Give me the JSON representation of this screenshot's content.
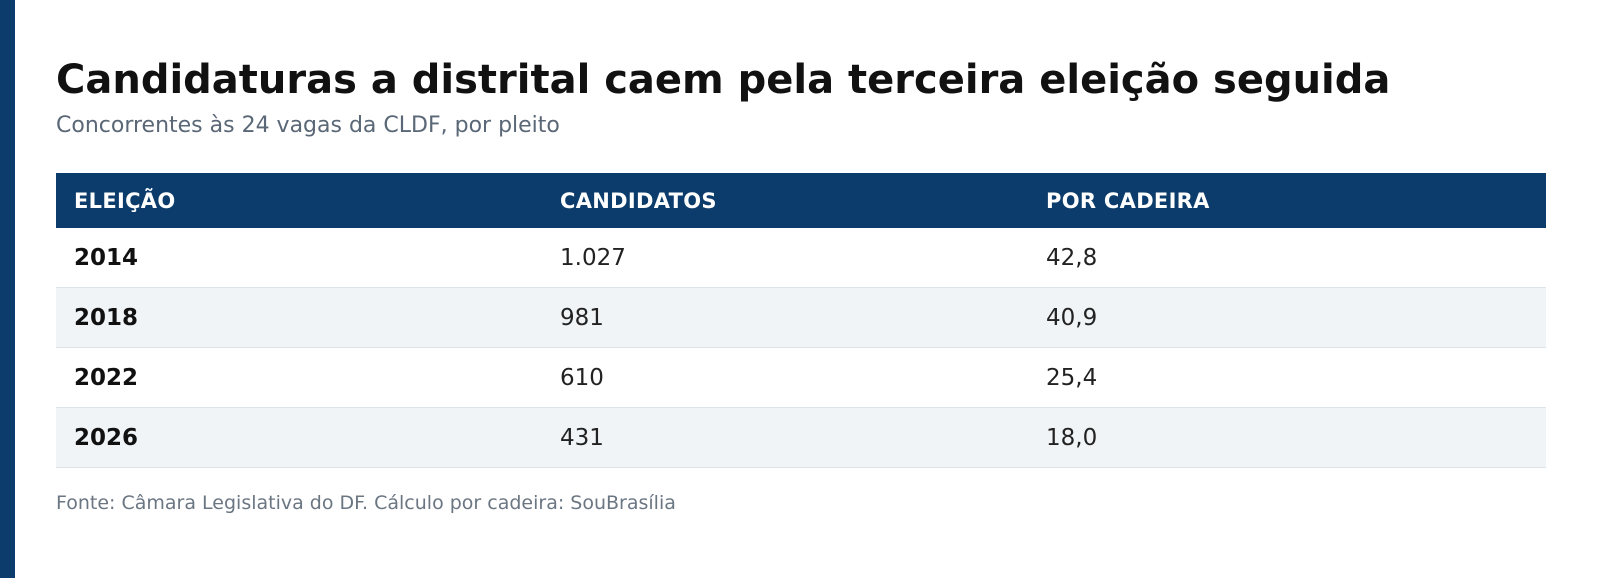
{
  "title": "Candidaturas a distrital caem pela terceira eleição seguida",
  "subtitle": "Concorrentes às 24 vagas da CLDF, por pleito",
  "source": "Fonte: Câmara Legislativa do DF. Cálculo por cadeira: SouBrasília",
  "colors": {
    "accent": "#0b3c6b",
    "header_bg": "#0b3c6b",
    "header_text": "#ffffff",
    "row_alt": "#f0f4f7"
  },
  "chart_data": {
    "type": "table",
    "title": "Candidaturas a distrital caem pela terceira eleição seguida",
    "subtitle": "Concorrentes às 24 vagas da CLDF, por pleito",
    "columns": [
      "ELEIÇÃO",
      "CANDIDATOS",
      "POR CADEIRA"
    ],
    "rows": [
      [
        "2014",
        "1.027",
        "42,8"
      ],
      [
        "2018",
        "981",
        "40,9"
      ],
      [
        "2022",
        "610",
        "25,4"
      ],
      [
        "2026",
        "431",
        "18,0"
      ]
    ]
  }
}
